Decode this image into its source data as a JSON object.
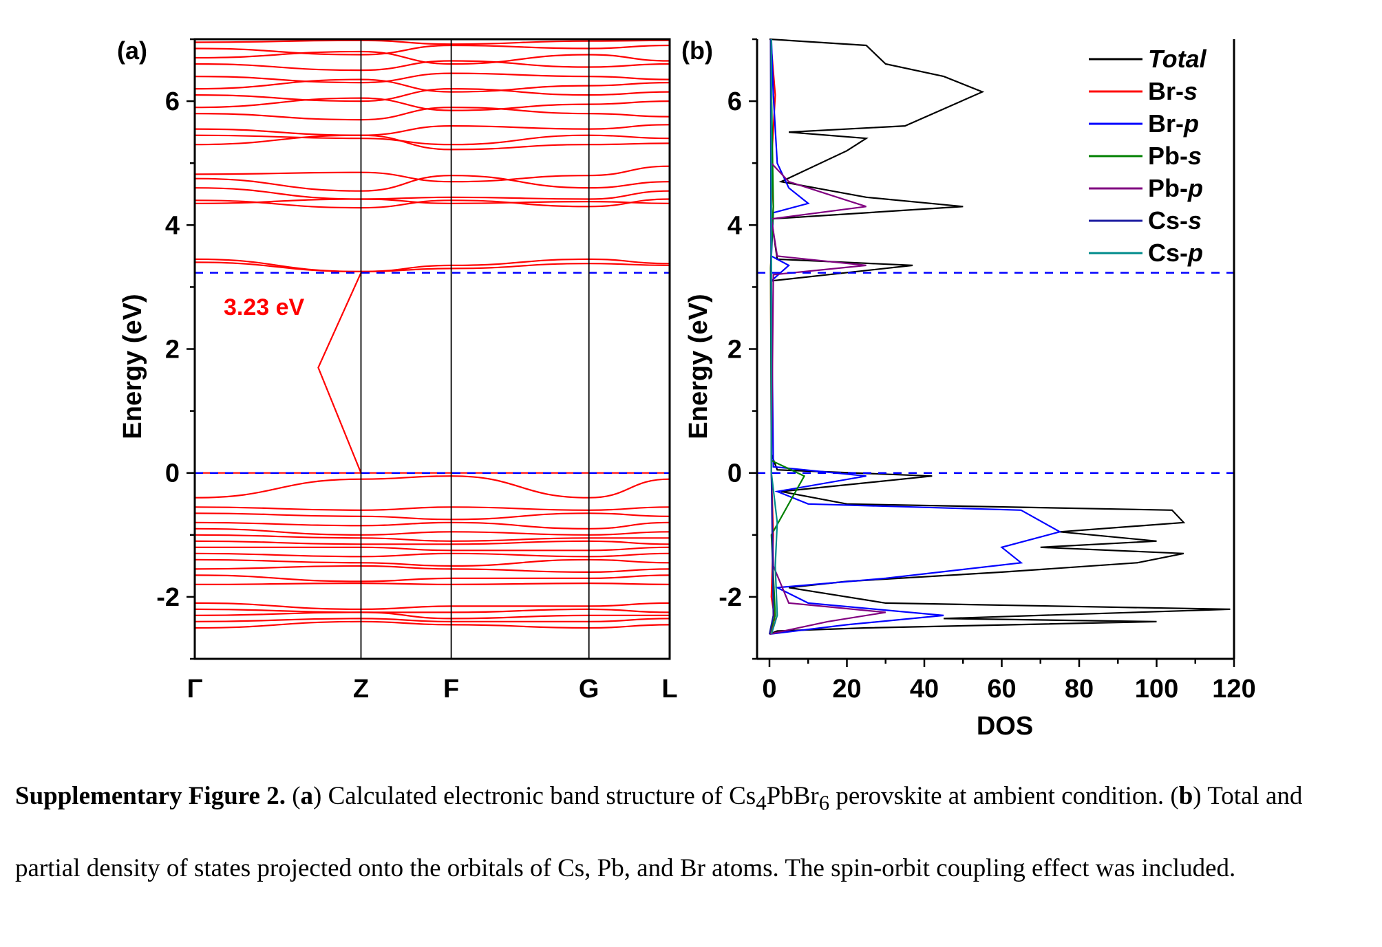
{
  "chart_data": [
    {
      "panel_label": "(a)",
      "type": "line",
      "ylabel": "Energy (eV)",
      "ylim": [
        -3,
        7
      ],
      "yticks": [
        "-2",
        "0",
        "2",
        "4",
        "6"
      ],
      "kpoints": [
        "Γ",
        "Z",
        "F",
        "G",
        "L"
      ],
      "kpoint_positions": [
        0,
        0.35,
        0.54,
        0.83,
        1.0
      ],
      "line_color": "#ff0000",
      "vbm_energy": 0,
      "cbm_energy": 3.23,
      "gap_annotation": "3.23 eV",
      "gap_arrow": [
        [
          0.35,
          0
        ],
        [
          0.26,
          1.7
        ],
        [
          0.35,
          3.23
        ]
      ],
      "conduction_bands": [
        {
          "x": [
            0,
            0.35,
            0.54,
            0.83,
            1.0
          ],
          "y": [
            3.45,
            3.25,
            3.35,
            3.45,
            3.38
          ]
        },
        {
          "x": [
            0,
            0.35,
            0.54,
            0.83,
            1.0
          ],
          "y": [
            3.4,
            3.25,
            3.3,
            3.38,
            3.35
          ]
        },
        {
          "x": [
            0,
            0.35,
            0.54,
            0.83,
            1.0
          ],
          "y": [
            4.35,
            4.42,
            4.35,
            4.38,
            4.35
          ]
        },
        {
          "x": [
            0,
            0.35,
            0.54,
            0.83,
            1.0
          ],
          "y": [
            4.4,
            4.28,
            4.4,
            4.3,
            4.42
          ]
        },
        {
          "x": [
            0,
            0.35,
            0.54,
            0.83,
            1.0
          ],
          "y": [
            4.6,
            4.42,
            4.45,
            4.42,
            4.55
          ]
        },
        {
          "x": [
            0,
            0.35,
            0.54,
            0.83,
            1.0
          ],
          "y": [
            4.75,
            4.55,
            4.8,
            4.6,
            4.7
          ]
        },
        {
          "x": [
            0,
            0.35,
            0.54,
            0.83,
            1.0
          ],
          "y": [
            4.82,
            4.85,
            4.7,
            4.8,
            4.95
          ]
        },
        {
          "x": [
            0,
            0.35,
            0.54,
            0.83,
            1.0
          ],
          "y": [
            5.3,
            5.45,
            5.22,
            5.3,
            5.32
          ]
        },
        {
          "x": [
            0,
            0.35,
            0.54,
            0.83,
            1.0
          ],
          "y": [
            5.45,
            5.4,
            5.3,
            5.45,
            5.4
          ]
        },
        {
          "x": [
            0,
            0.35,
            0.54,
            0.83,
            1.0
          ],
          "y": [
            5.55,
            5.45,
            5.6,
            5.55,
            5.62
          ]
        },
        {
          "x": [
            0,
            0.35,
            0.54,
            0.83,
            1.0
          ],
          "y": [
            5.8,
            5.7,
            5.9,
            5.8,
            5.75
          ]
        },
        {
          "x": [
            0,
            0.35,
            0.54,
            0.83,
            1.0
          ],
          "y": [
            5.9,
            6.05,
            5.85,
            5.95,
            6.0
          ]
        },
        {
          "x": [
            0,
            0.35,
            0.54,
            0.83,
            1.0
          ],
          "y": [
            6.1,
            6.0,
            6.2,
            6.1,
            6.15
          ]
        },
        {
          "x": [
            0,
            0.35,
            0.54,
            0.83,
            1.0
          ],
          "y": [
            6.2,
            6.35,
            6.15,
            6.25,
            6.3
          ]
        },
        {
          "x": [
            0,
            0.35,
            0.54,
            0.83,
            1.0
          ],
          "y": [
            6.4,
            6.3,
            6.45,
            6.4,
            6.35
          ]
        },
        {
          "x": [
            0,
            0.35,
            0.54,
            0.83,
            1.0
          ],
          "y": [
            6.6,
            6.5,
            6.65,
            6.55,
            6.6
          ]
        },
        {
          "x": [
            0,
            0.35,
            0.54,
            0.83,
            1.0
          ],
          "y": [
            6.7,
            6.8,
            6.6,
            6.75,
            6.65
          ]
        },
        {
          "x": [
            0,
            0.35,
            0.54,
            0.83,
            1.0
          ],
          "y": [
            6.85,
            6.75,
            6.9,
            6.85,
            6.9
          ]
        },
        {
          "x": [
            0,
            0.35,
            0.54,
            0.83,
            1.0
          ],
          "y": [
            6.95,
            6.98,
            6.92,
            6.97,
            6.98
          ]
        }
      ],
      "valence_bands": [
        {
          "x": [
            0,
            0.35,
            0.54,
            0.83,
            1.0
          ],
          "y": [
            0.0,
            0.0,
            0.0,
            0.0,
            0.0
          ]
        },
        {
          "x": [
            0,
            0.35,
            0.54,
            0.83,
            1.0
          ],
          "y": [
            -0.4,
            -0.1,
            -0.05,
            -0.4,
            -0.1
          ]
        },
        {
          "x": [
            0,
            0.35,
            0.54,
            0.83,
            1.0
          ],
          "y": [
            -0.55,
            -0.6,
            -0.55,
            -0.6,
            -0.55
          ]
        },
        {
          "x": [
            0,
            0.35,
            0.54,
            0.83,
            1.0
          ],
          "y": [
            -0.65,
            -0.7,
            -0.75,
            -0.65,
            -0.7
          ]
        },
        {
          "x": [
            0,
            0.35,
            0.54,
            0.83,
            1.0
          ],
          "y": [
            -0.8,
            -0.85,
            -0.8,
            -0.9,
            -0.8
          ]
        },
        {
          "x": [
            0,
            0.35,
            0.54,
            0.83,
            1.0
          ],
          "y": [
            -0.9,
            -1.0,
            -0.95,
            -1.0,
            -0.95
          ]
        },
        {
          "x": [
            0,
            0.35,
            0.54,
            0.83,
            1.0
          ],
          "y": [
            -1.0,
            -1.05,
            -1.1,
            -1.05,
            -1.05
          ]
        },
        {
          "x": [
            0,
            0.35,
            0.54,
            0.83,
            1.0
          ],
          "y": [
            -1.1,
            -1.15,
            -1.15,
            -1.1,
            -1.15
          ]
        },
        {
          "x": [
            0,
            0.35,
            0.54,
            0.83,
            1.0
          ],
          "y": [
            -1.2,
            -1.2,
            -1.25,
            -1.25,
            -1.2
          ]
        },
        {
          "x": [
            0,
            0.35,
            0.54,
            0.83,
            1.0
          ],
          "y": [
            -1.3,
            -1.35,
            -1.3,
            -1.35,
            -1.3
          ]
        },
        {
          "x": [
            0,
            0.35,
            0.54,
            0.83,
            1.0
          ],
          "y": [
            -1.4,
            -1.45,
            -1.5,
            -1.4,
            -1.45
          ]
        },
        {
          "x": [
            0,
            0.35,
            0.54,
            0.83,
            1.0
          ],
          "y": [
            -1.55,
            -1.5,
            -1.55,
            -1.6,
            -1.55
          ]
        },
        {
          "x": [
            0,
            0.35,
            0.54,
            0.83,
            1.0
          ],
          "y": [
            -1.65,
            -1.75,
            -1.7,
            -1.7,
            -1.65
          ]
        },
        {
          "x": [
            0,
            0.35,
            0.54,
            0.83,
            1.0
          ],
          "y": [
            -1.8,
            -1.78,
            -1.8,
            -1.78,
            -1.8
          ]
        },
        {
          "x": [
            0,
            0.35,
            0.54,
            0.83,
            1.0
          ],
          "y": [
            -2.1,
            -2.2,
            -2.15,
            -2.15,
            -2.1
          ]
        },
        {
          "x": [
            0,
            0.35,
            0.54,
            0.83,
            1.0
          ],
          "y": [
            -2.2,
            -2.25,
            -2.25,
            -2.2,
            -2.25
          ]
        },
        {
          "x": [
            0,
            0.35,
            0.54,
            0.83,
            1.0
          ],
          "y": [
            -2.3,
            -2.25,
            -2.35,
            -2.3,
            -2.3
          ]
        },
        {
          "x": [
            0,
            0.35,
            0.54,
            0.83,
            1.0
          ],
          "y": [
            -2.4,
            -2.35,
            -2.4,
            -2.4,
            -2.35
          ]
        },
        {
          "x": [
            0,
            0.35,
            0.54,
            0.83,
            1.0
          ],
          "y": [
            -2.5,
            -2.4,
            -2.45,
            -2.5,
            -2.45
          ]
        }
      ]
    },
    {
      "panel_label": "(b)",
      "type": "line",
      "xlabel": "DOS",
      "ylabel": "Energy (eV)",
      "xlim": [
        0,
        120
      ],
      "ylim": [
        -3,
        7
      ],
      "xticks": [
        "0",
        "20",
        "40",
        "60",
        "80",
        "100",
        "120"
      ],
      "yticks": [
        "-2",
        "0",
        "2",
        "4",
        "6"
      ],
      "reference_lines": [
        0,
        3.23
      ],
      "series": [
        {
          "name": "Total",
          "italic_part": "Total",
          "color": "#000000",
          "points": [
            [
              0,
              -2.6
            ],
            [
              2,
              -2.55
            ],
            [
              25,
              -2.5
            ],
            [
              100,
              -2.4
            ],
            [
              45,
              -2.35
            ],
            [
              119,
              -2.2
            ],
            [
              30,
              -2.1
            ],
            [
              5,
              -1.85
            ],
            [
              20,
              -1.75
            ],
            [
              60,
              -1.6
            ],
            [
              95,
              -1.45
            ],
            [
              107,
              -1.3
            ],
            [
              70,
              -1.2
            ],
            [
              100,
              -1.1
            ],
            [
              75,
              -0.95
            ],
            [
              107,
              -0.8
            ],
            [
              104,
              -0.6
            ],
            [
              20,
              -0.5
            ],
            [
              3,
              -0.3
            ],
            [
              42,
              -0.05
            ],
            [
              2,
              0.05
            ],
            [
              0.5,
              0.3
            ],
            [
              0.5,
              3.1
            ],
            [
              37,
              3.35
            ],
            [
              2,
              3.45
            ],
            [
              0.5,
              4.1
            ],
            [
              50,
              4.3
            ],
            [
              25,
              4.45
            ],
            [
              3,
              4.7
            ],
            [
              20,
              5.2
            ],
            [
              25,
              5.4
            ],
            [
              5,
              5.5
            ],
            [
              35,
              5.6
            ],
            [
              55,
              6.15
            ],
            [
              45,
              6.4
            ],
            [
              30,
              6.6
            ],
            [
              25,
              6.9
            ],
            [
              0,
              7.0
            ]
          ]
        },
        {
          "name": "Br-s",
          "italic_part": "s",
          "color": "#ff0000",
          "points": [
            [
              0,
              -2.6
            ],
            [
              1.5,
              -2.4
            ],
            [
              0.5,
              -2.0
            ],
            [
              1.0,
              -1.0
            ],
            [
              0.5,
              0.0
            ],
            [
              0.3,
              3.3
            ],
            [
              1.0,
              4.3
            ],
            [
              0.5,
              5.0
            ],
            [
              1.5,
              6.1
            ],
            [
              0.3,
              7.0
            ]
          ]
        },
        {
          "name": "Br-p",
          "italic_part": "p",
          "color": "#0000ff",
          "points": [
            [
              0,
              -2.6
            ],
            [
              20,
              -2.45
            ],
            [
              45,
              -2.3
            ],
            [
              10,
              -2.1
            ],
            [
              2,
              -1.85
            ],
            [
              30,
              -1.7
            ],
            [
              65,
              -1.45
            ],
            [
              60,
              -1.2
            ],
            [
              75,
              -0.95
            ],
            [
              65,
              -0.6
            ],
            [
              10,
              -0.5
            ],
            [
              2,
              -0.3
            ],
            [
              25,
              -0.05
            ],
            [
              1,
              0.1
            ],
            [
              0.5,
              3.1
            ],
            [
              5,
              3.35
            ],
            [
              0.5,
              3.5
            ],
            [
              1,
              4.2
            ],
            [
              10,
              4.35
            ],
            [
              5,
              4.6
            ],
            [
              2,
              5.0
            ],
            [
              1,
              6.1
            ],
            [
              0.5,
              7.0
            ]
          ]
        },
        {
          "name": "Pb-s",
          "italic_part": "s",
          "color": "#008000",
          "points": [
            [
              0,
              -2.6
            ],
            [
              1.5,
              -2.3
            ],
            [
              0.5,
              -1.0
            ],
            [
              9,
              -0.05
            ],
            [
              0.5,
              0.2
            ],
            [
              0.3,
              3.3
            ],
            [
              1.0,
              4.3
            ],
            [
              0.3,
              7.0
            ]
          ]
        },
        {
          "name": "Pb-p",
          "italic_part": "p",
          "color": "#800080",
          "points": [
            [
              0,
              -2.6
            ],
            [
              15,
              -2.4
            ],
            [
              30,
              -2.25
            ],
            [
              5,
              -2.1
            ],
            [
              1,
              -1.5
            ],
            [
              0.5,
              0.0
            ],
            [
              1,
              3.2
            ],
            [
              25,
              3.35
            ],
            [
              2,
              3.5
            ],
            [
              0.5,
              4.1
            ],
            [
              25,
              4.3
            ],
            [
              15,
              4.5
            ],
            [
              5,
              4.7
            ],
            [
              0.5,
              5.0
            ],
            [
              0.3,
              7.0
            ]
          ]
        },
        {
          "name": "Cs-s",
          "italic_part": "s",
          "color": "#1a1aa0",
          "points": [
            [
              0,
              -2.6
            ],
            [
              1,
              -2.3
            ],
            [
              0.5,
              0.0
            ],
            [
              0.3,
              7.0
            ]
          ]
        },
        {
          "name": "Cs-p",
          "italic_part": "p",
          "color": "#008b8b",
          "points": [
            [
              0.5,
              -2.6
            ],
            [
              2,
              -2.3
            ],
            [
              1.5,
              -1.5
            ],
            [
              2,
              -0.8
            ],
            [
              0.5,
              0.0
            ],
            [
              0.5,
              3.3
            ],
            [
              0.5,
              7.0
            ]
          ]
        }
      ]
    }
  ],
  "caption": {
    "label": "Supplementary Figure 2.",
    "a_marker": "a",
    "part1": "Calculated electronic band structure of Cs",
    "sub1": "4",
    "part2": "PbBr",
    "sub2": "6",
    "part3": " perovskite at ambient condition. (",
    "b_marker": "b",
    "part4": "Total and partial density of states projected onto the orbitals of Cs, Pb, and Br atoms. The spin-orbit coupling effect was included."
  }
}
